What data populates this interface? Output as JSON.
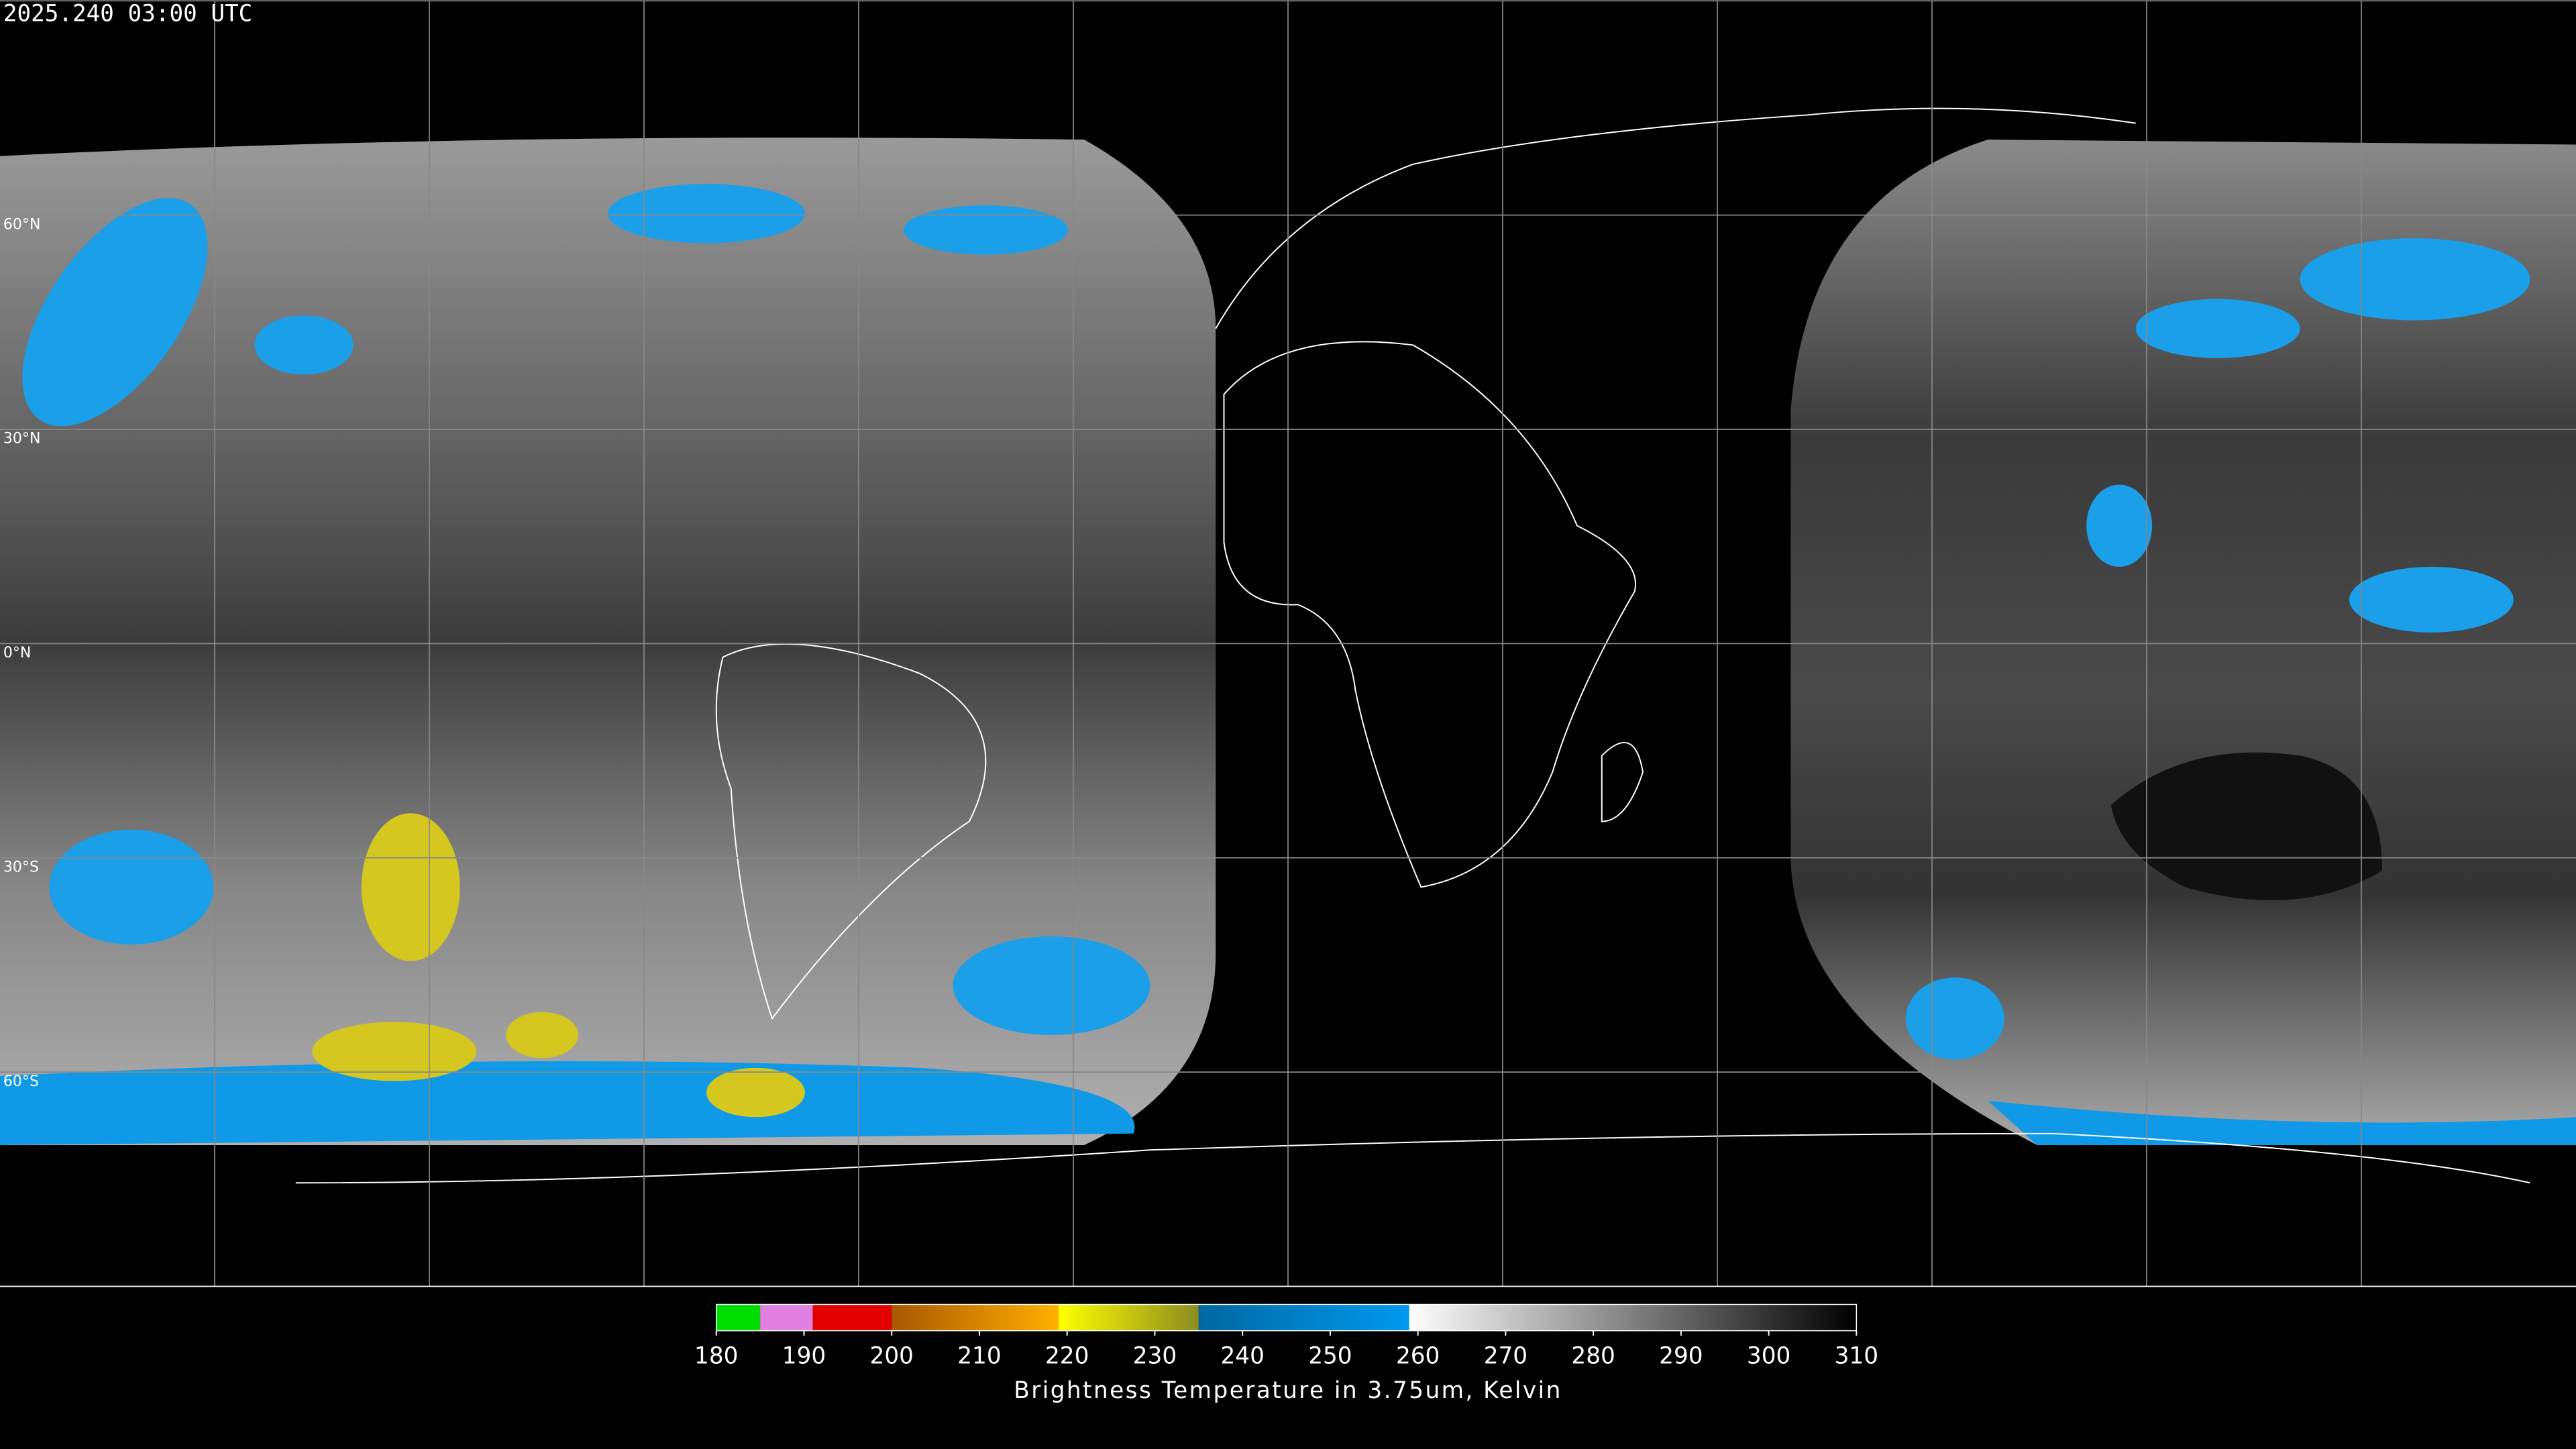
{
  "title": "2025.240 03:00 UTC",
  "map": {
    "xlim": [
      -180,
      180
    ],
    "ylim": [
      -90,
      90
    ],
    "lon_grid": [
      -150,
      -120,
      -90,
      -60,
      -30,
      0,
      30,
      60,
      90,
      120,
      150
    ],
    "lat_grid": [
      {
        "value": 60,
        "label": "60°N"
      },
      {
        "value": 30,
        "label": "30°N"
      },
      {
        "value": 0,
        "label": "0°N"
      },
      {
        "value": -30,
        "label": "30°S"
      },
      {
        "value": -60,
        "label": "60°S"
      }
    ],
    "grid_color": "#888888"
  },
  "colorbar": {
    "label": "Brightness Temperature in 3.75um, Kelvin",
    "lim": [
      180,
      310
    ],
    "ticks": [
      180,
      190,
      200,
      210,
      220,
      230,
      240,
      250,
      260,
      270,
      280,
      290,
      300,
      310
    ],
    "segments": [
      {
        "from": 180,
        "to": 185,
        "colors": [
          "#00dd00",
          "#00dd00"
        ]
      },
      {
        "from": 185,
        "to": 191,
        "colors": [
          "#e080e0",
          "#e080e0"
        ]
      },
      {
        "from": 191,
        "to": 200,
        "colors": [
          "#e00000",
          "#e00000"
        ]
      },
      {
        "from": 200,
        "to": 219,
        "colors": [
          "#a85800",
          "#ffb000"
        ]
      },
      {
        "from": 219,
        "to": 235,
        "colors": [
          "#ffff00",
          "#8c8c20"
        ]
      },
      {
        "from": 235,
        "to": 259,
        "colors": [
          "#0068a0",
          "#0099ee"
        ]
      },
      {
        "from": 259,
        "to": 310,
        "colors": [
          "#ffffff",
          "#000000"
        ]
      }
    ]
  }
}
